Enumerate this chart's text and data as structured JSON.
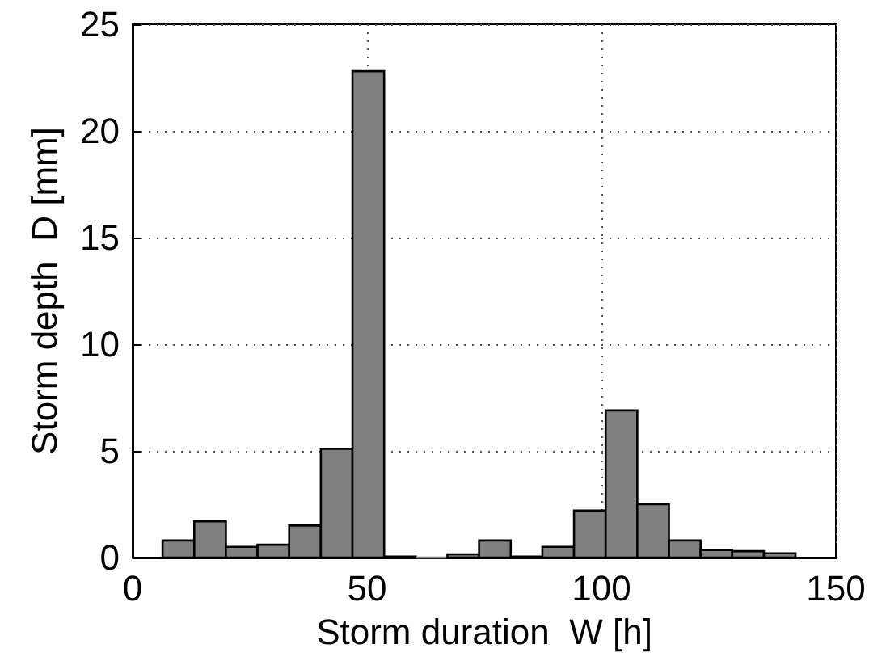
{
  "chart_data": {
    "type": "histogram",
    "xlabel": "Storm duration  W [h]",
    "ylabel": "Storm depth  D [mm]",
    "bins": [
      6.4,
      13.15,
      19.9,
      26.65,
      33.4,
      40.15,
      46.9,
      53.65,
      60.4,
      67.15,
      73.9,
      80.65,
      87.4,
      94.15,
      100.9,
      107.65,
      114.4,
      121.15,
      127.9,
      134.65,
      141.4
    ],
    "values": [
      0.8,
      1.7,
      0.5,
      0.6,
      1.5,
      5.1,
      22.8,
      0.05,
      0,
      0.15,
      0.8,
      0.05,
      0.5,
      2.2,
      6.9,
      2.5,
      0.8,
      0.35,
      0.3,
      0.2
    ],
    "color": "#808080",
    "xlim": [
      0,
      150
    ],
    "xticks": [
      0,
      50,
      100,
      150
    ],
    "ylim": [
      0,
      25
    ],
    "yticks": [
      0,
      5,
      10,
      15,
      20,
      25
    ],
    "grid": true
  }
}
